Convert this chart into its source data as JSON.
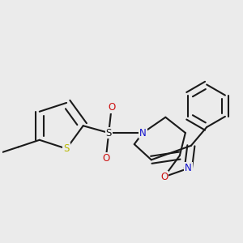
{
  "background_color": "#ebebeb",
  "bond_color": "#1a1a1a",
  "bond_width": 1.5,
  "atom_colors": {
    "S_thio": "#b8b800",
    "N": "#1010cc",
    "O": "#cc1010",
    "C": "#1a1a1a"
  },
  "figsize": [
    3.0,
    3.0
  ],
  "dpi": 100
}
